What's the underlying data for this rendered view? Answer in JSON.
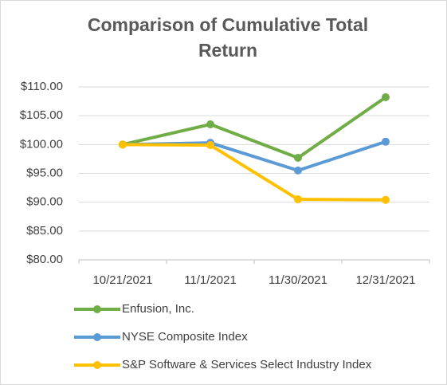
{
  "chart_data": {
    "type": "line",
    "title": "Comparison of Cumulative Total Return",
    "categories": [
      "10/21/2021",
      "11/1/2021",
      "11/30/2021",
      "12/31/2021"
    ],
    "series": [
      {
        "name": "Enfusion, Inc.",
        "color": "#70ad47",
        "values": [
          100,
          103.5,
          97.7,
          108.2
        ]
      },
      {
        "name": "NYSE Composite Index",
        "color": "#5b9bd5",
        "values": [
          100,
          100.3,
          95.5,
          100.5
        ]
      },
      {
        "name": "S&P Software & Services Select Industry Index",
        "color": "#ffc000",
        "values": [
          100,
          99.9,
          90.5,
          90.4
        ]
      }
    ],
    "ylim": [
      80,
      110
    ],
    "yticks": [
      {
        "value": 80,
        "label": "$80.00"
      },
      {
        "value": 85,
        "label": "$85.00"
      },
      {
        "value": 90,
        "label": "$90.00"
      },
      {
        "value": 95,
        "label": "$95.00"
      },
      {
        "value": 100,
        "label": "$100.00"
      },
      {
        "value": 105,
        "label": "$105.00"
      },
      {
        "value": 110,
        "label": "$110.00"
      }
    ],
    "grid": true,
    "legend": "bottom"
  }
}
